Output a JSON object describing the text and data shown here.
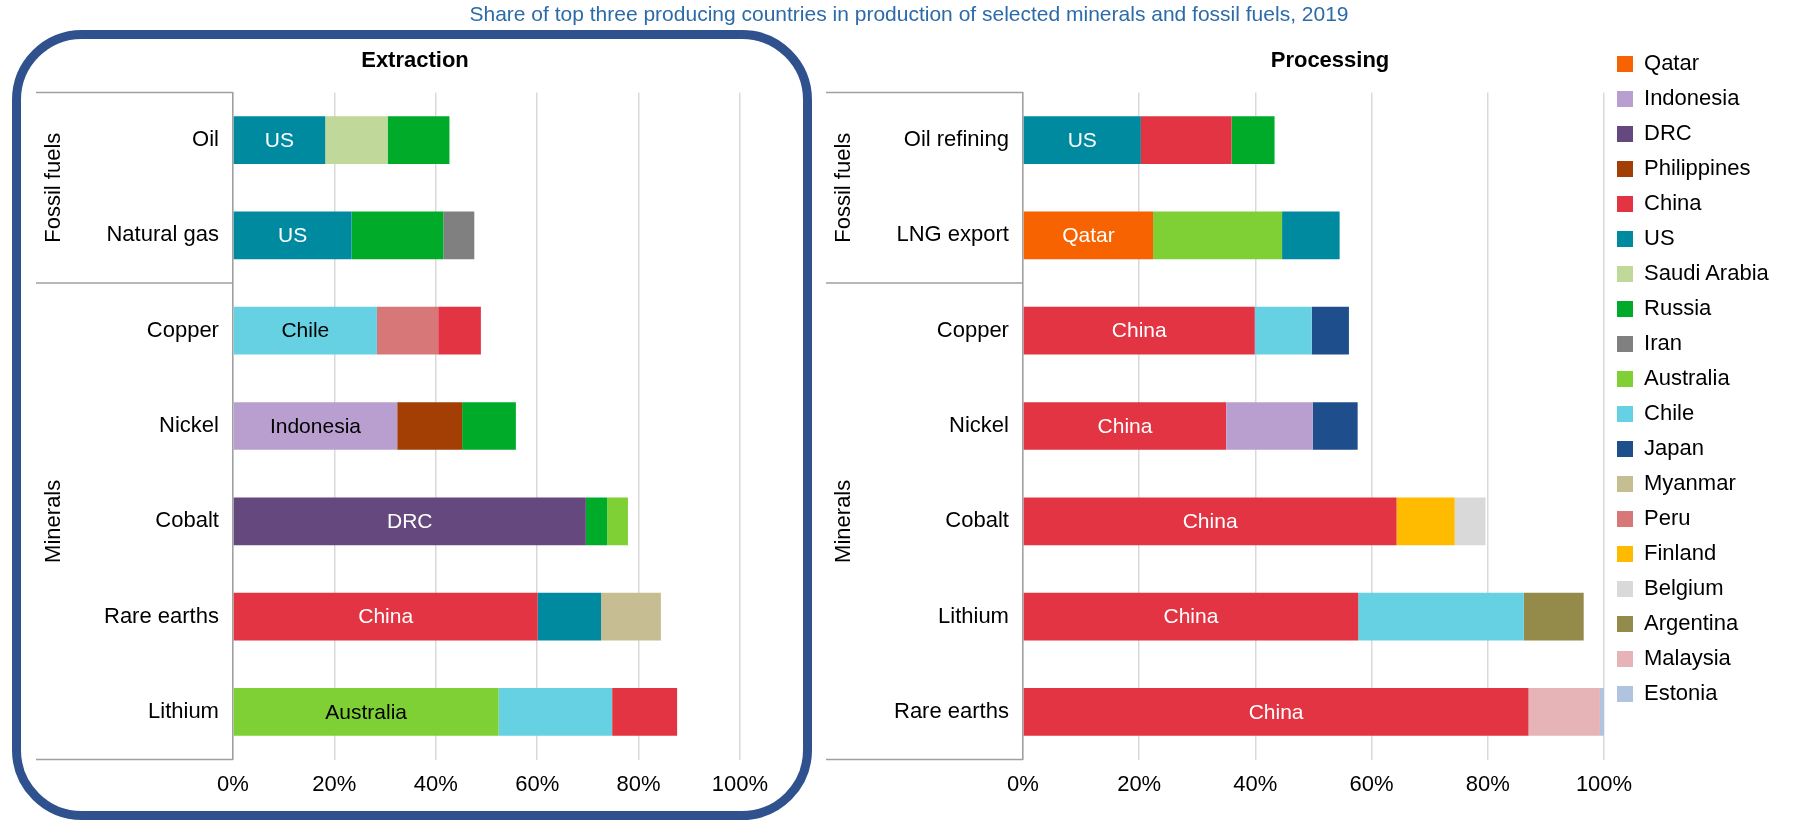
{
  "chart_data": [
    {
      "type": "bar",
      "orientation": "horizontal",
      "title": "Extraction",
      "subtitle": "Share of top three producing countries in production of selected minerals and fossil fuels, 2019",
      "categories": [
        "Oil",
        "Natural gas",
        "Copper",
        "Nickel",
        "Cobalt",
        "Rare earths",
        "Lithium"
      ],
      "annotations": [
        "Fossil fuels",
        "Minerals"
      ],
      "xlim": [
        0,
        100
      ],
      "xticks": [
        {
          "value": 0,
          "label": "0%"
        },
        {
          "value": 20,
          "label": "20%"
        },
        {
          "value": 40,
          "label": "40%"
        },
        {
          "value": 60,
          "label": "60%"
        },
        {
          "value": 80,
          "label": "80%"
        },
        {
          "value": 100,
          "label": "100%"
        }
      ],
      "grid": "x",
      "legend": false,
      "series": [
        {
          "color": "#b89fd0",
          "values": [
            null,
            null,
            null,
            32.4,
            null,
            null,
            null
          ],
          "base": [
            null,
            null,
            null,
            0,
            null,
            null,
            null
          ],
          "value_labels": [
            null,
            null,
            null,
            "Indonesia",
            null,
            null,
            null
          ]
        },
        {
          "color": "#64487e",
          "values": [
            null,
            null,
            null,
            null,
            69.6,
            null,
            null
          ],
          "base": [
            null,
            null,
            null,
            null,
            0,
            null,
            null
          ],
          "value_labels": [
            null,
            null,
            null,
            null,
            "DRC",
            null,
            null
          ]
        },
        {
          "color": "#a33f04",
          "values": [
            null,
            null,
            null,
            12.8,
            null,
            null,
            null
          ],
          "base": [
            null,
            null,
            null,
            32.4,
            null,
            null,
            null
          ]
        },
        {
          "color": "#e23442",
          "values": [
            null,
            null,
            8.4,
            null,
            null,
            60.1,
            12.8
          ],
          "base": [
            null,
            null,
            40.5,
            null,
            null,
            0,
            74.8
          ],
          "value_labels": [
            null,
            null,
            null,
            null,
            null,
            "China",
            null
          ]
        },
        {
          "color": "#008aa0",
          "values": [
            18.2,
            23.4,
            null,
            null,
            null,
            12.5,
            null
          ],
          "base": [
            0,
            0,
            null,
            null,
            null,
            60.1,
            null
          ],
          "value_labels": [
            "US",
            "US",
            null,
            null,
            null,
            null,
            null
          ]
        },
        {
          "color": "#c0d89a",
          "values": [
            12.3,
            null,
            null,
            null,
            null,
            null,
            null
          ],
          "base": [
            18.2,
            null,
            null,
            null,
            null,
            null,
            null
          ]
        },
        {
          "color": "#00ab2a",
          "values": [
            12.2,
            18.1,
            null,
            10.6,
            4.2,
            null,
            null
          ],
          "base": [
            30.5,
            23.4,
            null,
            45.2,
            69.6,
            null,
            null
          ]
        },
        {
          "color": "#808080",
          "values": [
            null,
            6.1,
            null,
            null,
            null,
            null,
            null
          ],
          "base": [
            null,
            41.5,
            null,
            null,
            null,
            null,
            null
          ]
        },
        {
          "color": "#7fd034",
          "values": [
            null,
            null,
            null,
            null,
            4.1,
            null,
            52.4
          ],
          "base": [
            null,
            null,
            null,
            null,
            73.8,
            null,
            0
          ],
          "value_labels": [
            null,
            null,
            null,
            null,
            null,
            null,
            "Australia"
          ]
        },
        {
          "color": "#66d1e3",
          "values": [
            null,
            null,
            28.4,
            null,
            null,
            null,
            22.4
          ],
          "base": [
            null,
            null,
            0,
            null,
            null,
            null,
            52.4
          ],
          "value_labels": [
            null,
            null,
            "Chile",
            null,
            null,
            null,
            null
          ]
        },
        {
          "color": "#c6bd92",
          "values": [
            null,
            null,
            null,
            null,
            null,
            11.8,
            null
          ],
          "base": [
            null,
            null,
            null,
            null,
            null,
            72.6,
            null
          ]
        },
        {
          "color": "#d87777",
          "values": [
            null,
            null,
            12.1,
            null,
            null,
            null,
            null
          ],
          "base": [
            null,
            null,
            28.4,
            null,
            null,
            null,
            null
          ]
        }
      ]
    },
    {
      "type": "bar",
      "orientation": "horizontal",
      "title": "Processing",
      "categories": [
        "Oil refining",
        "LNG export",
        "Copper",
        "Nickel",
        "Cobalt",
        "Lithium",
        "Rare earths"
      ],
      "annotations": [
        "Fossil fuels",
        "Minerals"
      ],
      "xlim": [
        0,
        100
      ],
      "xticks": [
        {
          "value": 0,
          "label": "0%"
        },
        {
          "value": 20,
          "label": "20%"
        },
        {
          "value": 40,
          "label": "40%"
        },
        {
          "value": 60,
          "label": "60%"
        },
        {
          "value": 80,
          "label": "80%"
        },
        {
          "value": 100,
          "label": "100%"
        }
      ],
      "grid": "x",
      "legend": "right",
      "series": [
        {
          "name": "Qatar",
          "color": "#f76300",
          "values": [
            null,
            22.4,
            null,
            null,
            null,
            null,
            null
          ],
          "base": [
            null,
            0,
            null,
            null,
            null,
            null,
            null
          ],
          "value_labels": [
            null,
            "Qatar",
            null,
            null,
            null,
            null,
            null
          ]
        },
        {
          "name": "Indonesia",
          "color": "#b89fd0",
          "values": [
            null,
            null,
            null,
            14.9,
            null,
            null,
            null
          ],
          "base": [
            null,
            null,
            null,
            35.0,
            null,
            null,
            null
          ]
        },
        {
          "name": "DRC",
          "color": "#64487e",
          "values": [
            null,
            null,
            null,
            null,
            null,
            null,
            null
          ],
          "base": [
            null,
            null,
            null,
            null,
            null,
            null,
            null
          ]
        },
        {
          "name": "Philippines",
          "color": "#a33f04",
          "values": [
            null,
            null,
            null,
            null,
            null,
            null,
            null
          ],
          "base": [
            null,
            null,
            null,
            null,
            null,
            null,
            null
          ]
        },
        {
          "name": "China",
          "color": "#e23442",
          "values": [
            15.6,
            null,
            39.9,
            35.0,
            64.3,
            57.7,
            87.0
          ],
          "base": [
            20.3,
            null,
            0,
            0,
            0,
            0,
            0
          ],
          "value_labels": [
            null,
            null,
            "China",
            "China",
            "China",
            "China",
            "China"
          ]
        },
        {
          "name": "US",
          "color": "#008aa0",
          "values": [
            20.3,
            9.9,
            null,
            null,
            null,
            null,
            null
          ],
          "base": [
            0,
            44.6,
            null,
            null,
            null,
            null,
            null
          ],
          "value_labels": [
            "US",
            null,
            null,
            null,
            null,
            null,
            null
          ]
        },
        {
          "name": "Saudi Arabia",
          "color": "#c0d89a",
          "values": [
            null,
            null,
            null,
            null,
            null,
            null,
            null
          ],
          "base": [
            null,
            null,
            null,
            null,
            null,
            null,
            null
          ]
        },
        {
          "name": "Russia",
          "color": "#00ab2a",
          "values": [
            7.4,
            null,
            null,
            null,
            null,
            null,
            null
          ],
          "base": [
            35.9,
            null,
            null,
            null,
            null,
            null,
            null
          ]
        },
        {
          "name": "Iran",
          "color": "#808080",
          "values": [
            null,
            null,
            null,
            null,
            null,
            null,
            null
          ],
          "base": [
            null,
            null,
            null,
            null,
            null,
            null,
            null
          ]
        },
        {
          "name": "Australia",
          "color": "#7fd034",
          "values": [
            null,
            22.2,
            null,
            null,
            null,
            null,
            null
          ],
          "base": [
            null,
            22.4,
            null,
            null,
            null,
            null,
            null
          ]
        },
        {
          "name": "Chile",
          "color": "#66d1e3",
          "values": [
            null,
            null,
            9.8,
            null,
            null,
            28.5,
            null
          ],
          "base": [
            null,
            null,
            39.9,
            null,
            null,
            57.7,
            null
          ]
        },
        {
          "name": "Japan",
          "color": "#1f4e8c",
          "values": [
            null,
            null,
            6.4,
            7.7,
            null,
            null,
            null
          ],
          "base": [
            null,
            null,
            49.7,
            49.9,
            null,
            null,
            null
          ]
        },
        {
          "name": "Myanmar",
          "color": "#c6bd92",
          "values": [
            null,
            null,
            null,
            null,
            null,
            null,
            null
          ],
          "base": [
            null,
            null,
            null,
            null,
            null,
            null,
            null
          ]
        },
        {
          "name": "Peru",
          "color": "#d87777",
          "values": [
            null,
            null,
            null,
            null,
            null,
            null,
            null
          ],
          "base": [
            null,
            null,
            null,
            null,
            null,
            null,
            null
          ]
        },
        {
          "name": "Finland",
          "color": "#ffbb00",
          "values": [
            null,
            null,
            null,
            null,
            10.0,
            null,
            null
          ],
          "base": [
            null,
            null,
            null,
            null,
            64.3,
            null,
            null
          ]
        },
        {
          "name": "Belgium",
          "color": "#d9d9d9",
          "values": [
            null,
            null,
            null,
            null,
            5.3,
            null,
            null
          ],
          "base": [
            null,
            null,
            null,
            null,
            74.3,
            null,
            null
          ]
        },
        {
          "name": "Argentina",
          "color": "#948a4a",
          "values": [
            null,
            null,
            null,
            null,
            null,
            10.3,
            null
          ],
          "base": [
            null,
            null,
            null,
            null,
            null,
            86.2,
            null
          ]
        },
        {
          "name": "Malaysia",
          "color": "#e6b4b6",
          "values": [
            null,
            null,
            null,
            null,
            null,
            null,
            12.3
          ],
          "base": [
            null,
            null,
            null,
            null,
            null,
            null,
            87.0
          ]
        },
        {
          "name": "Estonia",
          "color": "#b0c4e0",
          "values": [
            null,
            null,
            null,
            null,
            null,
            null,
            0.7
          ],
          "base": [
            null,
            null,
            null,
            null,
            null,
            null,
            99.3
          ]
        }
      ]
    }
  ]
}
